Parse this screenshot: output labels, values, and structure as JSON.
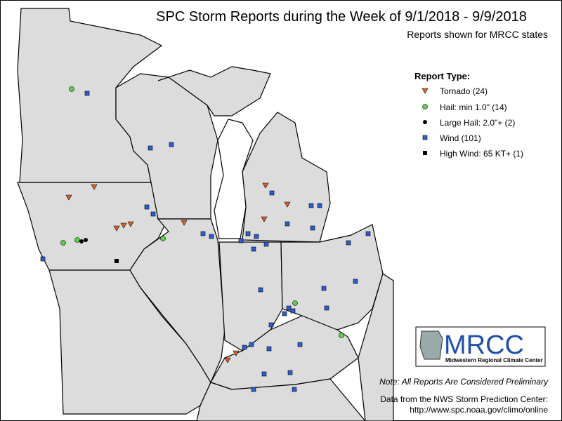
{
  "header": {
    "title": "SPC Storm Reports during the Week of 9/1/2018 - 9/9/2018",
    "subtitle": "Reports shown for MRCC states"
  },
  "legend": {
    "title": "Report Type:",
    "items": [
      "Tornado (24)",
      "Hail: min 1.0\" (14)",
      "Large Hail: 2.0\"+ (2)",
      "Wind (101)",
      "High Wind: 65 KT+ (1)"
    ]
  },
  "logo": {
    "name": "MRCC",
    "full_name": "Midwestern Regional Climate Center"
  },
  "footer": {
    "note": "Note: All Reports Are Considered Preliminary",
    "source": "Data from the NWS Storm Prediction Center:",
    "url": "http://www.spc.noaa.gov/climo/online"
  }
}
